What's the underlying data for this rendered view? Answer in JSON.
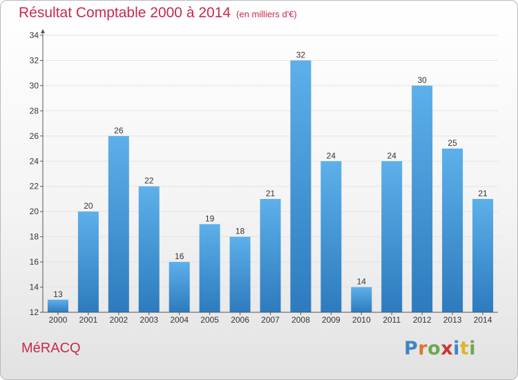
{
  "header": {
    "title": "Résultat Comptable 2000 à 2014",
    "subtitle": "(en milliers d'€)"
  },
  "footer": {
    "commune": "MéRACQ",
    "logo": [
      "P",
      "r",
      "o",
      "x",
      "i",
      "t",
      "i"
    ]
  },
  "colors": {
    "title": "#c8284f",
    "bar_top": "#5db0ea",
    "bar_bottom": "#2d7bbe",
    "logo": [
      "#3d85c6",
      "#e0762c",
      "#6aa84f",
      "#cc3333",
      "#3d85c6",
      "#e0b42c",
      "#6aa84f"
    ]
  },
  "chart_data": {
    "type": "bar",
    "title": "Résultat Comptable 2000 à 2014",
    "subtitle": "(en milliers d'€)",
    "categories": [
      "2000",
      "2001",
      "2002",
      "2003",
      "2004",
      "2005",
      "2006",
      "2007",
      "2008",
      "2009",
      "2010",
      "2011",
      "2012",
      "2013",
      "2014"
    ],
    "values": [
      13,
      20,
      26,
      22,
      16,
      19,
      18,
      21,
      32,
      24,
      14,
      24,
      30,
      25,
      21
    ],
    "ylim": [
      12,
      34
    ],
    "yticks": [
      12,
      14,
      16,
      18,
      20,
      22,
      24,
      26,
      28,
      30,
      32,
      34
    ],
    "grid": true,
    "legend": "none"
  }
}
